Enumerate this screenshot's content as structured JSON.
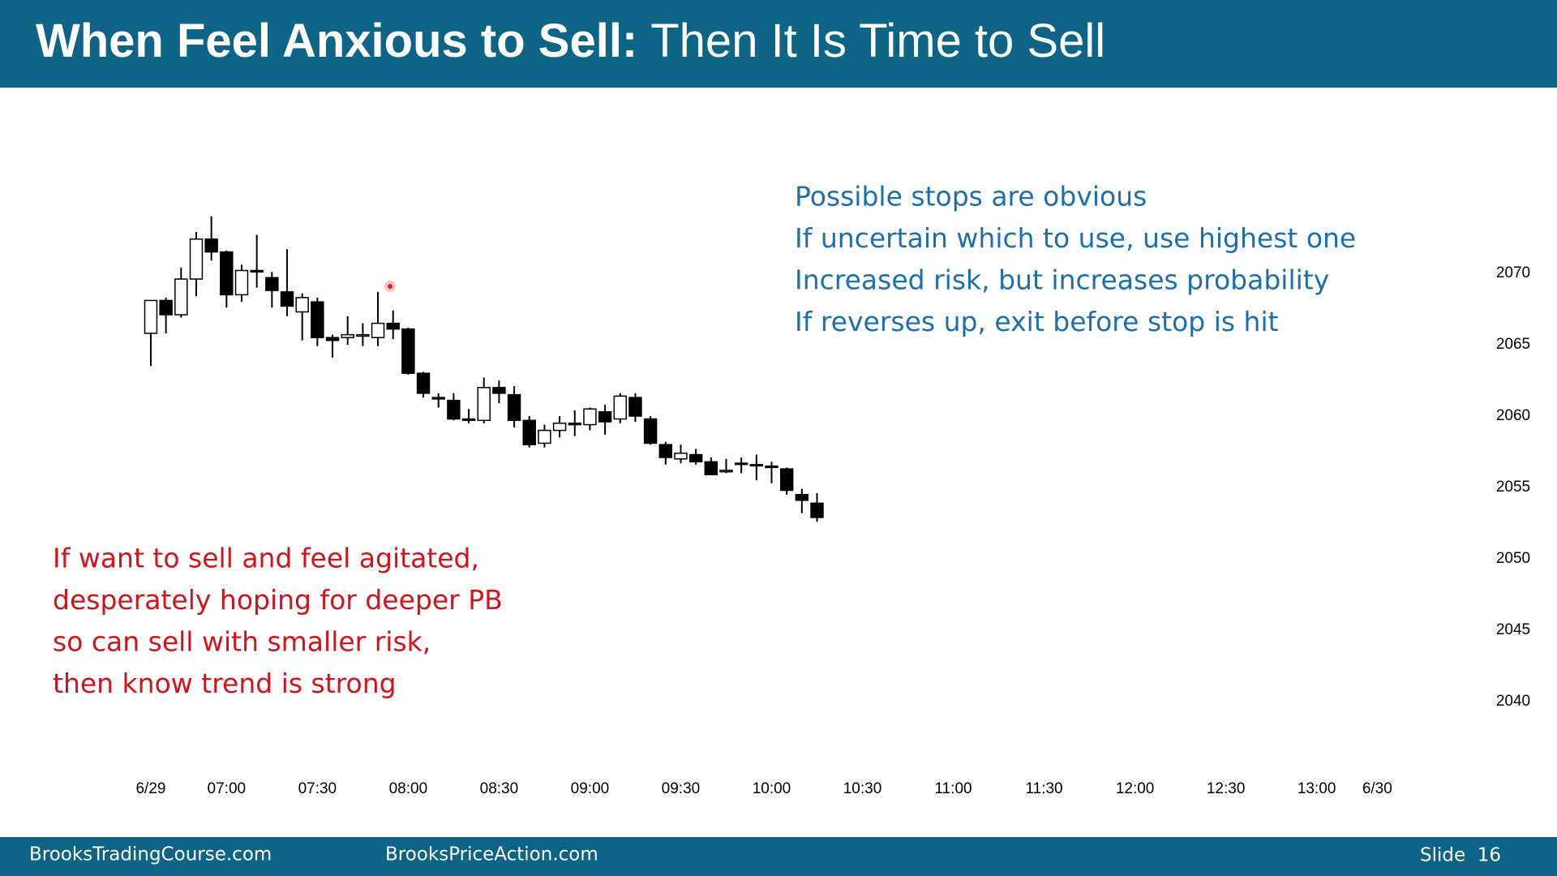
{
  "header": {
    "title_bold": "When Feel Anxious to Sell:",
    "title_rest": "Then It Is Time to Sell"
  },
  "chart_data": {
    "type": "candlestick",
    "x": [
      0,
      1,
      2,
      3,
      4,
      5,
      6,
      7,
      8,
      9,
      10,
      11,
      12,
      13,
      14,
      15,
      16,
      17,
      18,
      19,
      20,
      21,
      22,
      23,
      24,
      25,
      26,
      27,
      28,
      29,
      30,
      31,
      32,
      33,
      34,
      35,
      36,
      37,
      38,
      39,
      40,
      41,
      42,
      43,
      44
    ],
    "open": [
      2065.8,
      2068.1,
      2067.1,
      2069.6,
      2072.4,
      2071.5,
      2068.5,
      2070.2,
      2069.7,
      2068.7,
      2067.3,
      2068.0,
      2065.5,
      2065.5,
      2065.6,
      2065.5,
      2066.5,
      2066.1,
      2063.0,
      2061.3,
      2061.1,
      2059.8,
      2059.7,
      2062.0,
      2061.5,
      2059.7,
      2058.1,
      2059.0,
      2059.5,
      2059.4,
      2060.3,
      2059.8,
      2061.3,
      2059.8,
      2058.0,
      2057.0,
      2057.3,
      2056.8,
      2056.1,
      2056.7,
      2056.6,
      2056.5,
      2056.3,
      2054.5,
      2053.9
    ],
    "high": [
      2068.1,
      2068.3,
      2070.4,
      2072.9,
      2074.0,
      2071.6,
      2070.6,
      2072.7,
      2070.1,
      2071.7,
      2068.6,
      2068.3,
      2065.7,
      2067.0,
      2066.5,
      2068.7,
      2067.4,
      2066.2,
      2063.1,
      2061.6,
      2061.6,
      2060.5,
      2062.7,
      2062.5,
      2062.1,
      2060.0,
      2059.4,
      2060.0,
      2060.4,
      2060.6,
      2060.8,
      2061.6,
      2061.6,
      2060.0,
      2058.2,
      2058.0,
      2057.7,
      2057.1,
      2057.0,
      2057.1,
      2057.3,
      2056.8,
      2056.4,
      2054.9,
      2054.6
    ],
    "low": [
      2063.5,
      2065.8,
      2066.9,
      2068.4,
      2070.9,
      2067.6,
      2068.0,
      2069.0,
      2067.6,
      2067.0,
      2065.3,
      2064.9,
      2064.1,
      2065.0,
      2064.9,
      2064.9,
      2065.4,
      2062.9,
      2061.3,
      2060.6,
      2059.7,
      2059.5,
      2059.5,
      2060.9,
      2059.2,
      2057.8,
      2057.8,
      2058.5,
      2058.6,
      2059.0,
      2058.7,
      2059.5,
      2059.6,
      2058.0,
      2056.6,
      2056.7,
      2056.6,
      2055.9,
      2056.0,
      2056.0,
      2055.5,
      2055.3,
      2054.5,
      2053.2,
      2052.6
    ],
    "close": [
      2068.1,
      2067.1,
      2069.6,
      2072.4,
      2071.5,
      2068.5,
      2070.2,
      2070.1,
      2068.8,
      2067.7,
      2068.3,
      2065.5,
      2065.3,
      2065.7,
      2065.7,
      2066.5,
      2066.1,
      2063.0,
      2061.6,
      2061.2,
      2059.8,
      2059.7,
      2062.0,
      2061.6,
      2059.7,
      2058.0,
      2059.0,
      2059.5,
      2059.4,
      2060.5,
      2059.6,
      2061.4,
      2060.0,
      2058.1,
      2057.1,
      2057.4,
      2056.8,
      2055.9,
      2056.2,
      2056.7,
      2056.6,
      2056.4,
      2054.8,
      2054.1,
      2052.9
    ],
    "up_color": "#ffffff",
    "down_color": "#000000",
    "edge_color": "#000000",
    "xlim": [
      -1,
      82
    ],
    "xticks": [
      {
        "value": 0,
        "label": "6/29"
      },
      {
        "value": 5,
        "label": "07:00"
      },
      {
        "value": 11,
        "label": "07:30"
      },
      {
        "value": 17,
        "label": "08:00"
      },
      {
        "value": 23,
        "label": "08:30"
      },
      {
        "value": 29,
        "label": "09:00"
      },
      {
        "value": 35,
        "label": "09:30"
      },
      {
        "value": 41,
        "label": "10:00"
      },
      {
        "value": 47,
        "label": "10:30"
      },
      {
        "value": 53,
        "label": "11:00"
      },
      {
        "value": 59,
        "label": "11:30"
      },
      {
        "value": 65,
        "label": "12:00"
      },
      {
        "value": 71,
        "label": "12:30"
      },
      {
        "value": 77,
        "label": "13:00"
      },
      {
        "value": 81,
        "label": "6/30"
      }
    ],
    "ylim": [
      2035,
      2080
    ],
    "yticks": [
      2040,
      2045,
      2050,
      2055,
      2060,
      2065,
      2070
    ],
    "grid": false
  },
  "notes_blue": [
    "Possible stops are obvious",
    "If uncertain which to use, use highest one",
    "Increased risk, but increases probability",
    "If reverses up, exit before stop is hit"
  ],
  "notes_red": [
    "If want to sell and feel agitated,",
    "desperately hoping for deeper PB",
    "so can sell with smaller risk,",
    "then know trend is strong"
  ],
  "footer": {
    "left": "BrooksTradingCourse.com",
    "center": "BrooksPriceAction.com",
    "slide": "Slide  16"
  }
}
